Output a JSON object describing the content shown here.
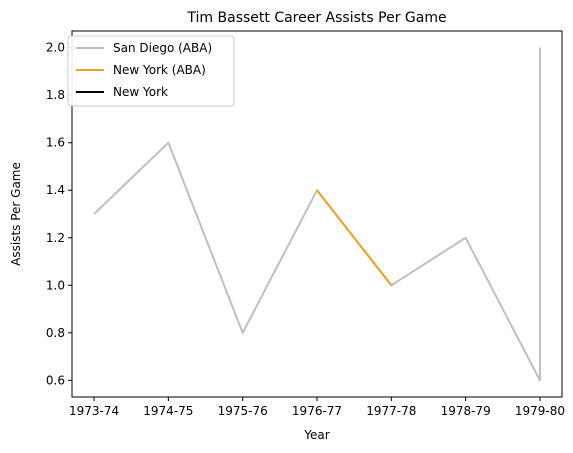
{
  "chart_data": {
    "type": "line",
    "title": "Tim Bassett Career Assists Per Game",
    "xlabel": "Year",
    "ylabel": "Assists Per Game",
    "categories": [
      "1973-74",
      "1974-75",
      "1975-76",
      "1976-77",
      "1977-78",
      "1978-79",
      "1979-80"
    ],
    "yticks": [
      "0.6",
      "0.8",
      "1.0",
      "1.2",
      "1.4",
      "1.6",
      "1.8",
      "2.0"
    ],
    "ylim": [
      0.53,
      2.07
    ],
    "grid": false,
    "legend_position": "top-left",
    "series": [
      {
        "name": "San Diego (ABA)",
        "color": "#bfbfbf",
        "points": [
          {
            "x": "1973-74",
            "y": 1.3
          },
          {
            "x": "1974-75",
            "y": 1.6
          },
          {
            "x": "1975-76",
            "y": 0.8
          },
          {
            "x": "1976-77",
            "y": 1.4
          },
          {
            "x": "1977-78",
            "y": 1.0
          },
          {
            "x": "1978-79",
            "y": 1.2
          },
          {
            "x": "1979-80",
            "y": 0.6
          },
          {
            "x": "1979-80",
            "y": 2.0
          }
        ]
      },
      {
        "name": "New York (ABA)",
        "color": "#f0a020",
        "points": [
          {
            "x": "1976-77",
            "y": 1.4
          },
          {
            "x": "1977-78",
            "y": 1.0
          }
        ]
      },
      {
        "name": "New York",
        "color": "#000000",
        "points": []
      }
    ]
  }
}
